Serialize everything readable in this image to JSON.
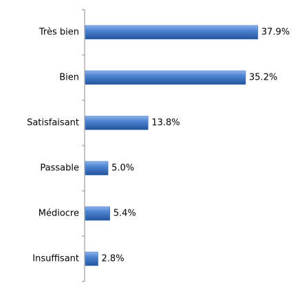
{
  "chart_data": {
    "type": "bar",
    "orientation": "horizontal",
    "categories": [
      "Très bien",
      "Bien",
      "Satisfaisant",
      "Passable",
      "Médiocre",
      "Insuffisant"
    ],
    "values": [
      37.9,
      35.2,
      13.8,
      5.0,
      5.4,
      2.8
    ],
    "value_labels": [
      "37.9%",
      "35.2%",
      "13.8%",
      "5.0%",
      "5.4%",
      "2.8%"
    ],
    "color": "#3a72c4"
  }
}
